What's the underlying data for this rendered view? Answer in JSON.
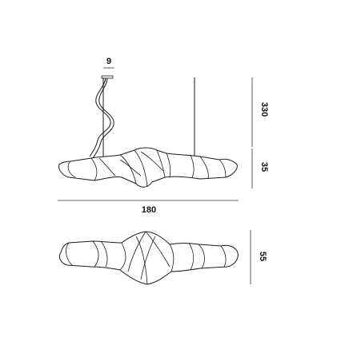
{
  "dimensions": {
    "canopy_diameter": "9",
    "cable_length": "330",
    "body_height_side": "35",
    "total_width": "180",
    "body_depth_top": "55"
  }
}
